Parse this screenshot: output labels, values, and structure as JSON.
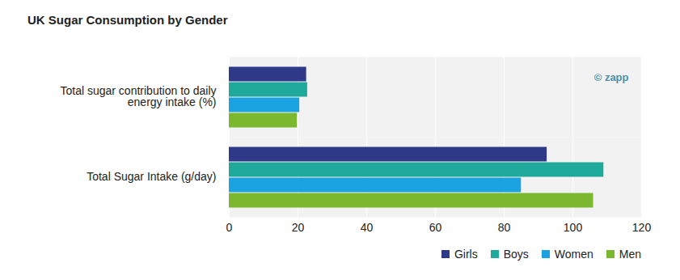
{
  "chart_data": {
    "type": "bar",
    "orientation": "horizontal",
    "title": "UK Sugar Consumption by Gender",
    "categories": [
      "Total sugar contribution to daily energy intake (%)",
      "Total Sugar Intake (g/day)"
    ],
    "series": [
      {
        "name": "Girls",
        "color": "#2e3a87",
        "values": [
          22.5,
          92.5
        ]
      },
      {
        "name": "Boys",
        "color": "#1fa99a",
        "values": [
          22.8,
          109
        ]
      },
      {
        "name": "Women",
        "color": "#1aa3e0",
        "values": [
          20.5,
          85
        ]
      },
      {
        "name": "Men",
        "color": "#7bb82f",
        "values": [
          19.8,
          106
        ]
      }
    ],
    "xlim": [
      0,
      120
    ],
    "xticks": [
      0,
      20,
      40,
      60,
      80,
      100,
      120
    ],
    "grid": true,
    "legend": "bottom-right",
    "annotations": [
      "© zapp"
    ]
  }
}
